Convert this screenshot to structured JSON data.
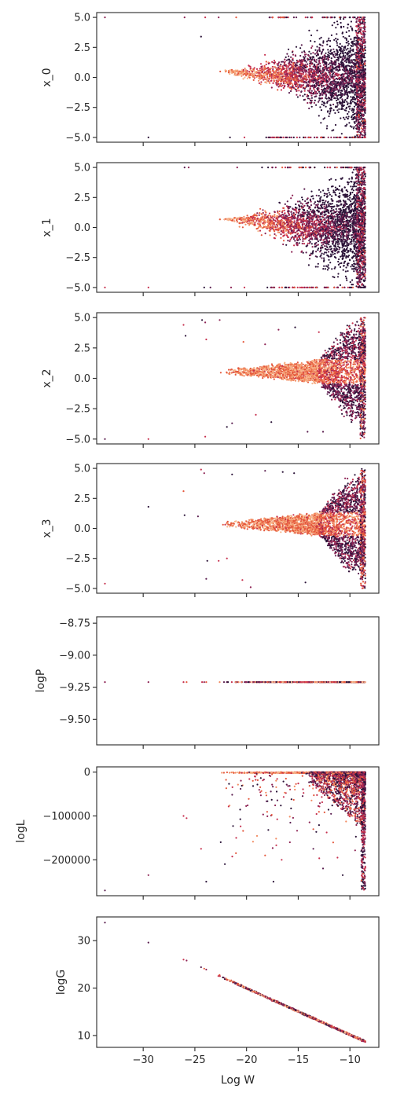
{
  "chart_data": {
    "type": "scatter",
    "layout": "7 vertically stacked panels sharing the x axis",
    "xlabel": "Log W",
    "xlim": [
      -34.5,
      -7.2
    ],
    "x_ticks": [
      -30,
      -25,
      -20,
      -15,
      -10
    ],
    "x_tick_labels": [
      "−30",
      "−25",
      "−20",
      "−15",
      "−10"
    ],
    "colormap": [
      "#2a1237",
      "#5a1e4f",
      "#8d2354",
      "#c6304e",
      "#e4573c",
      "#f28a60",
      "#f6b48a"
    ],
    "marker": "small dots",
    "panels": [
      {
        "ylabel": "x_0",
        "ylim": [
          -5.4,
          5.4
        ],
        "y_ticks": [
          5.0,
          2.5,
          0.0,
          -2.5,
          -5.0
        ],
        "y_tick_labels": [
          "5.0",
          "2.5",
          "0.0",
          "−2.5",
          "−5.0"
        ],
        "pattern": "funnel",
        "dense_x_range": [
          -22.8,
          -8.5
        ],
        "spread_at_left": 0.1,
        "spread_at_right": 5.0,
        "center": 0.45,
        "outliers": [
          [
            -33.7,
            5.0
          ],
          [
            -29.5,
            -5.0
          ],
          [
            -26,
            5.0
          ],
          [
            -24.4,
            3.4
          ],
          [
            -24,
            5.0
          ],
          [
            -22.7,
            5.0
          ],
          [
            -21.6,
            -5.0
          ],
          [
            -21,
            5.0
          ],
          [
            -20.2,
            -5.0
          ],
          [
            -18.1,
            -5.0
          ],
          [
            -16.9,
            -5.0
          ]
        ]
      },
      {
        "ylabel": "x_1",
        "ylim": [
          -5.4,
          5.4
        ],
        "y_ticks": [
          5.0,
          2.5,
          0.0,
          -2.5,
          -5.0
        ],
        "y_tick_labels": [
          "5.0",
          "2.5",
          "0.0",
          "−2.5",
          "−5.0"
        ],
        "pattern": "funnel",
        "dense_x_range": [
          -22.8,
          -8.5
        ],
        "spread_at_left": 0.1,
        "spread_at_right": 5.0,
        "center": 0.7,
        "outliers": [
          [
            -33.7,
            -5.0
          ],
          [
            -29.5,
            -5.0
          ],
          [
            -26,
            5.0
          ],
          [
            -25.6,
            5.0
          ],
          [
            -24.1,
            -5.0
          ],
          [
            -23.5,
            -5.0
          ],
          [
            -21.5,
            -5.0
          ],
          [
            -20.9,
            5.0
          ],
          [
            -20.2,
            -5.0
          ],
          [
            -18.5,
            5.0
          ],
          [
            -13.8,
            -2.3
          ],
          [
            -14.4,
            3.2
          ]
        ]
      },
      {
        "ylabel": "x_2",
        "ylim": [
          -5.4,
          5.4
        ],
        "y_ticks": [
          5.0,
          2.5,
          0.0,
          -2.5,
          -5.0
        ],
        "y_tick_labels": [
          "5.0",
          "2.5",
          "0.0",
          "−2.5",
          "−5.0"
        ],
        "pattern": "flat-then-bulge",
        "dense_x_range": [
          -22.8,
          -8.5
        ],
        "center": 0.55,
        "outliers": [
          [
            -33.7,
            -5.0
          ],
          [
            -29.5,
            -5.0
          ],
          [
            -26.1,
            4.4
          ],
          [
            -25.9,
            3.5
          ],
          [
            -24.3,
            4.8
          ],
          [
            -24.0,
            4.6
          ],
          [
            -23.9,
            3.2
          ],
          [
            -22.6,
            4.8
          ],
          [
            -21.9,
            -4.0
          ],
          [
            -21.4,
            -3.7
          ],
          [
            -24.0,
            -4.8
          ],
          [
            -20.3,
            3.0
          ],
          [
            -19.1,
            -3.0
          ],
          [
            -18.2,
            2.8
          ],
          [
            -17.6,
            -3.6
          ],
          [
            -16.9,
            4.0
          ],
          [
            -15.3,
            4.2
          ],
          [
            -14.1,
            -4.4
          ],
          [
            -13.0,
            3.8
          ],
          [
            -12.6,
            -4.4
          ]
        ]
      },
      {
        "ylabel": "x_3",
        "ylim": [
          -5.4,
          5.4
        ],
        "y_ticks": [
          5.0,
          2.5,
          0.0,
          -2.5,
          -5.0
        ],
        "y_tick_labels": [
          "5.0",
          "2.5",
          "0.0",
          "−2.5",
          "−5.0"
        ],
        "pattern": "flat-then-bulge",
        "dense_x_range": [
          -22.8,
          -8.5
        ],
        "center": 0.35,
        "outliers": [
          [
            -33.7,
            -4.6
          ],
          [
            -29.5,
            1.8
          ],
          [
            -26.1,
            3.1
          ],
          [
            -26.0,
            1.1
          ],
          [
            -24.4,
            4.9
          ],
          [
            -24.1,
            4.6
          ],
          [
            -24.7,
            1.0
          ],
          [
            -23.9,
            -4.2
          ],
          [
            -23.8,
            -2.7
          ],
          [
            -22.7,
            -2.7
          ],
          [
            -21.9,
            -2.5
          ],
          [
            -21.4,
            4.5
          ],
          [
            -20.4,
            -4.3
          ],
          [
            -19.6,
            -4.9
          ],
          [
            -18.2,
            4.8
          ],
          [
            -16.5,
            4.7
          ],
          [
            -15.4,
            4.6
          ],
          [
            -14.3,
            -4.5
          ]
        ]
      },
      {
        "ylabel": "logP",
        "ylim": [
          -9.7,
          -8.7
        ],
        "y_ticks": [
          -8.75,
          -9.0,
          -9.25,
          -9.5
        ],
        "y_tick_labels": [
          "−8.75",
          "−9.00",
          "−9.25",
          "−9.50"
        ],
        "pattern": "constant",
        "constant_y": -9.21,
        "dense_x_range": [
          -22.8,
          -8.5
        ],
        "outliers": [
          [
            -33.7,
            -9.21
          ],
          [
            -29.5,
            -9.21
          ],
          [
            -26.1,
            -9.21
          ],
          [
            -25.8,
            -9.21
          ],
          [
            -24.3,
            -9.21
          ],
          [
            -24.1,
            -9.21
          ],
          [
            -23.9,
            -9.21
          ]
        ]
      },
      {
        "ylabel": "logL",
        "ylim": [
          -282000,
          12000
        ],
        "y_ticks": [
          0,
          -100000,
          -200000
        ],
        "y_tick_labels": [
          "0",
          "−100000",
          "−200000"
        ],
        "pattern": "top-band-with-scatter",
        "dense_x_range": [
          -22.8,
          -8.5
        ],
        "outliers": [
          [
            -33.7,
            -270000
          ],
          [
            -29.5,
            -235000
          ],
          [
            -26.1,
            -100000
          ],
          [
            -25.8,
            -105000
          ],
          [
            -24.4,
            -175000
          ],
          [
            -23.9,
            -250000
          ],
          [
            -22.5,
            -160000
          ],
          [
            -22.1,
            -210000
          ],
          [
            -21.0,
            -150000
          ],
          [
            -18.2,
            -190000
          ],
          [
            -17.4,
            -250000
          ],
          [
            -16.6,
            -200000
          ],
          [
            -12.6,
            -220000
          ],
          [
            -11.2,
            -195000
          ],
          [
            -10.7,
            -235000
          ]
        ]
      },
      {
        "ylabel": "logG",
        "ylim": [
          7.5,
          35.0
        ],
        "y_ticks": [
          30,
          20,
          10
        ],
        "y_tick_labels": [
          "30",
          "20",
          "10"
        ],
        "pattern": "line",
        "line_from": [
          -22.8,
          22.7
        ],
        "line_to": [
          -8.5,
          8.7
        ],
        "dense_x_range": [
          -22.8,
          -8.5
        ],
        "outliers": [
          [
            -33.7,
            33.8
          ],
          [
            -29.5,
            29.6
          ],
          [
            -26.1,
            26.0
          ],
          [
            -25.8,
            25.8
          ],
          [
            -24.4,
            24.4
          ],
          [
            -24.1,
            24.1
          ],
          [
            -23.9,
            23.9
          ]
        ]
      }
    ]
  }
}
